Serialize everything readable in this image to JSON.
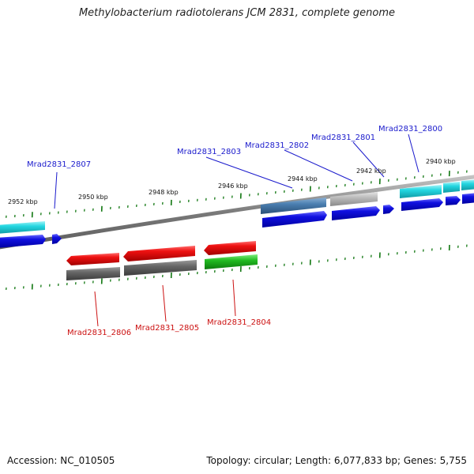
{
  "title": "Methylobacterium radiotolerans JCM 2831, complete genome",
  "footer": {
    "accession": "Accession: NC_010505",
    "summary": "Topology: circular; Length: 6,077,833 bp; Genes: 5,755"
  },
  "scale_labels": [
    "2952 kbp",
    "2950 kbp",
    "2948 kbp",
    "2946 kbp",
    "2944 kbp",
    "2942 kbp",
    "2940 kbp"
  ],
  "gene_labels": {
    "forward": [
      "Mrad2831_2807",
      "Mrad2831_2803",
      "Mrad2831_2802",
      "Mrad2831_2801",
      "Mrad2831_2800"
    ],
    "reverse": [
      "Mrad2831_2806",
      "Mrad2831_2805",
      "Mrad2831_2804"
    ]
  },
  "colors": {
    "cds_blue": "#1010e0",
    "cds_red": "#ee1111",
    "feature_cyan": "#22d6e0",
    "feature_steel": "#4a7eb0",
    "feature_gray": "#bbbbbb",
    "feature_darkgray": "#666666",
    "feature_green": "#22bb22",
    "label_blue": "#1a1acc",
    "label_red": "#cc1111",
    "tick_green": "#117711"
  }
}
